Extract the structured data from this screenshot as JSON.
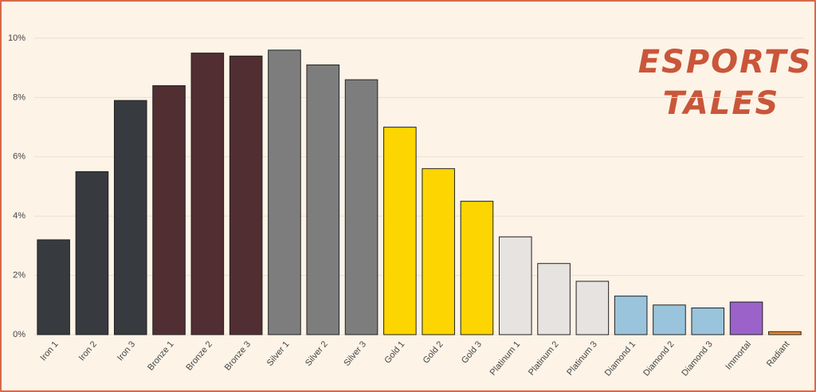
{
  "chart_data": {
    "type": "bar",
    "categories": [
      "Iron 1",
      "Iron 2",
      "Iron 3",
      "Bronze 1",
      "Bronze 2",
      "Bronze 3",
      "Silver 1",
      "Silver 2",
      "Silver 3",
      "Gold 1",
      "Gold 2",
      "Gold 3",
      "Platinum 1",
      "Platinum 2",
      "Platinum 3",
      "Diamond 1",
      "Diamond 2",
      "Diamond 3",
      "Immortal",
      "Radiant"
    ],
    "values": [
      3.2,
      5.5,
      7.9,
      8.4,
      9.5,
      9.4,
      9.6,
      9.1,
      8.6,
      7.0,
      5.6,
      4.5,
      3.3,
      2.4,
      1.8,
      1.3,
      1.0,
      0.9,
      1.1,
      0.1
    ],
    "colors": [
      "#373a3e",
      "#373a3e",
      "#373a3e",
      "#512e31",
      "#512e31",
      "#512e31",
      "#7d7d7d",
      "#7d7d7d",
      "#7d7d7d",
      "#fdd500",
      "#fdd500",
      "#fdd500",
      "#e6e3e0",
      "#e6e3e0",
      "#e6e3e0",
      "#9ac4db",
      "#9ac4db",
      "#9ac4db",
      "#9b62c9",
      "#ee8a2b"
    ],
    "ylim": [
      0,
      10
    ],
    "yticks": [
      {
        "value": 0,
        "label": "0%"
      },
      {
        "value": 2,
        "label": "2%"
      },
      {
        "value": 4,
        "label": "4%"
      },
      {
        "value": 6,
        "label": "6%"
      },
      {
        "value": 8,
        "label": "8%"
      },
      {
        "value": 10,
        "label": "10%"
      }
    ],
    "grid": true
  },
  "logo": {
    "line1": "ESPORTS",
    "line2": "TALES"
  }
}
